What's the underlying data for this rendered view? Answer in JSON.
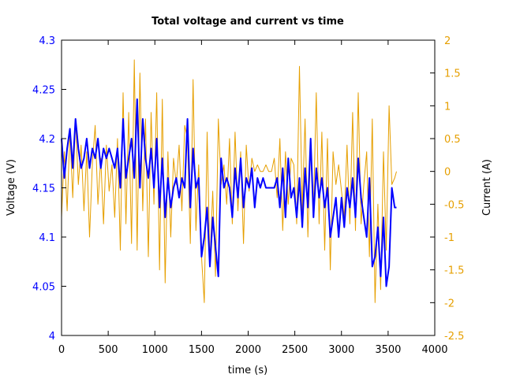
{
  "chart_data": {
    "type": "line",
    "title": "Total voltage and current vs time",
    "xlabel": "time (s)",
    "ylabel": "Voltage (V)",
    "y2label": "Current (A)",
    "xlim": [
      0,
      4000
    ],
    "ylim": [
      4,
      4.3
    ],
    "y2lim": [
      -2.5,
      2
    ],
    "xticks": [
      "0",
      "500",
      "1000",
      "1500",
      "2000",
      "2500",
      "3000",
      "3500",
      "4000"
    ],
    "xtick_values": [
      0,
      500,
      1000,
      1500,
      2000,
      2500,
      3000,
      3500,
      4000
    ],
    "yticks": [
      "4",
      "4.05",
      "4.1",
      "4.15",
      "4.2",
      "4.25",
      "4.3"
    ],
    "ytick_values": [
      4,
      4.05,
      4.1,
      4.15,
      4.2,
      4.25,
      4.3
    ],
    "y2ticks": [
      "-2.5",
      "-2",
      "-1.5",
      "-1",
      "-0.5",
      "0",
      "0.5",
      "1",
      "1.5",
      "2"
    ],
    "y2tick_values": [
      -2.5,
      -2,
      -1.5,
      -1,
      -0.5,
      0,
      0.5,
      1,
      1.5,
      2
    ],
    "grid": false,
    "colors": {
      "voltage": "#0000ff",
      "current": "#e69f00",
      "frame": "#000000"
    },
    "series": [
      {
        "axis": "left",
        "color": "#0000ff",
        "x": [
          0,
          30,
          60,
          90,
          120,
          150,
          180,
          210,
          240,
          270,
          300,
          330,
          360,
          390,
          420,
          450,
          480,
          510,
          540,
          570,
          600,
          630,
          660,
          690,
          720,
          750,
          780,
          810,
          840,
          870,
          900,
          930,
          960,
          990,
          1020,
          1050,
          1080,
          1110,
          1140,
          1170,
          1200,
          1230,
          1260,
          1290,
          1320,
          1350,
          1380,
          1410,
          1440,
          1470,
          1500,
          1530,
          1560,
          1590,
          1620,
          1650,
          1680,
          1710,
          1740,
          1770,
          1800,
          1830,
          1860,
          1890,
          1920,
          1950,
          1980,
          2010,
          2040,
          2070,
          2100,
          2130,
          2160,
          2190,
          2220,
          2250,
          2280,
          2310,
          2340,
          2370,
          2400,
          2430,
          2460,
          2490,
          2520,
          2550,
          2580,
          2610,
          2640,
          2670,
          2700,
          2730,
          2760,
          2790,
          2820,
          2850,
          2880,
          2910,
          2940,
          2970,
          3000,
          3030,
          3060,
          3090,
          3120,
          3150,
          3180,
          3210,
          3240,
          3270,
          3300,
          3330,
          3360,
          3390,
          3420,
          3450,
          3480,
          3510,
          3540,
          3570,
          3590
        ],
        "y": [
          4.2,
          4.16,
          4.19,
          4.21,
          4.17,
          4.22,
          4.19,
          4.17,
          4.18,
          4.2,
          4.17,
          4.19,
          4.18,
          4.2,
          4.17,
          4.19,
          4.18,
          4.19,
          4.18,
          4.17,
          4.19,
          4.15,
          4.22,
          4.16,
          4.18,
          4.2,
          4.16,
          4.24,
          4.15,
          4.22,
          4.18,
          4.16,
          4.19,
          4.15,
          4.2,
          4.13,
          4.18,
          4.12,
          4.16,
          4.13,
          4.15,
          4.16,
          4.14,
          4.16,
          4.15,
          4.22,
          4.13,
          4.19,
          4.15,
          4.16,
          4.08,
          4.1,
          4.13,
          4.07,
          4.12,
          4.09,
          4.06,
          4.18,
          4.15,
          4.16,
          4.15,
          4.12,
          4.17,
          4.14,
          4.18,
          4.13,
          4.16,
          4.15,
          4.17,
          4.13,
          4.16,
          4.15,
          4.16,
          4.15,
          4.15,
          4.15,
          4.15,
          4.16,
          4.13,
          4.17,
          4.12,
          4.18,
          4.14,
          4.15,
          4.12,
          4.16,
          4.11,
          4.17,
          4.13,
          4.2,
          4.12,
          4.17,
          4.14,
          4.16,
          4.13,
          4.15,
          4.1,
          4.12,
          4.14,
          4.1,
          4.14,
          4.11,
          4.15,
          4.13,
          4.16,
          4.12,
          4.18,
          4.14,
          4.12,
          4.1,
          4.16,
          4.07,
          4.08,
          4.11,
          4.06,
          4.12,
          4.05,
          4.07,
          4.15,
          4.13,
          4.13
        ],
        "name": ""
      },
      {
        "axis": "right",
        "color": "#e69f00",
        "x": [
          0,
          30,
          60,
          90,
          120,
          150,
          180,
          210,
          240,
          270,
          300,
          330,
          360,
          390,
          420,
          450,
          480,
          510,
          540,
          570,
          600,
          630,
          660,
          690,
          720,
          750,
          780,
          810,
          840,
          870,
          900,
          930,
          960,
          990,
          1020,
          1050,
          1080,
          1110,
          1140,
          1170,
          1200,
          1230,
          1260,
          1290,
          1320,
          1350,
          1380,
          1410,
          1440,
          1470,
          1500,
          1530,
          1560,
          1590,
          1620,
          1650,
          1680,
          1710,
          1740,
          1770,
          1800,
          1830,
          1860,
          1890,
          1920,
          1950,
          1980,
          2010,
          2040,
          2070,
          2100,
          2130,
          2160,
          2190,
          2220,
          2250,
          2280,
          2310,
          2340,
          2370,
          2400,
          2430,
          2460,
          2490,
          2520,
          2550,
          2580,
          2610,
          2640,
          2670,
          2700,
          2730,
          2760,
          2790,
          2820,
          2850,
          2880,
          2910,
          2940,
          2970,
          3000,
          3030,
          3060,
          3090,
          3120,
          3150,
          3180,
          3210,
          3240,
          3270,
          3300,
          3330,
          3360,
          3390,
          3420,
          3450,
          3480,
          3510,
          3540,
          3570,
          3590
        ],
        "y": [
          -0.7,
          0.3,
          -0.6,
          0.6,
          -0.4,
          0.8,
          -0.2,
          0.4,
          -0.6,
          0.3,
          -1,
          0.1,
          0.7,
          -0.5,
          0.2,
          -0.8,
          0.4,
          -0.3,
          0.1,
          -0.7,
          0.5,
          -1.2,
          1.2,
          -0.8,
          0.9,
          -1.1,
          1.7,
          -1.2,
          1.5,
          -0.6,
          0.8,
          -1.3,
          0.9,
          -0.5,
          1.2,
          -1.5,
          1.1,
          -1.7,
          0.3,
          -1,
          0.2,
          -0.2,
          0.4,
          -0.6,
          0.7,
          0.5,
          -1.1,
          1.4,
          -0.9,
          0.1,
          -1.3,
          -2,
          0.6,
          -1.4,
          -0.3,
          -1.6,
          0.8,
          -0.2,
          0.1,
          -0.5,
          0.5,
          -0.8,
          0.6,
          -0.6,
          0.3,
          -1.1,
          0.4,
          -0.3,
          0.2,
          0,
          0.1,
          0,
          0,
          0.1,
          0,
          0,
          0.2,
          -0.4,
          0.5,
          -0.9,
          0.3,
          -0.5,
          0.2,
          0.1,
          -0.8,
          1.6,
          -0.6,
          0.8,
          -1,
          0.4,
          -0.6,
          1.2,
          -0.8,
          0.6,
          -1.2,
          0.5,
          -1.5,
          0.3,
          -0.2,
          0.1,
          -0.3,
          -0.7,
          0.4,
          -0.8,
          0.9,
          -0.9,
          1.2,
          -0.8,
          -0.2,
          0.3,
          -1.3,
          0.8,
          -2,
          -0.5,
          -1.8,
          0.3,
          -1.2,
          1,
          -0.2,
          -0.1,
          0
        ],
        "name": ""
      }
    ]
  }
}
